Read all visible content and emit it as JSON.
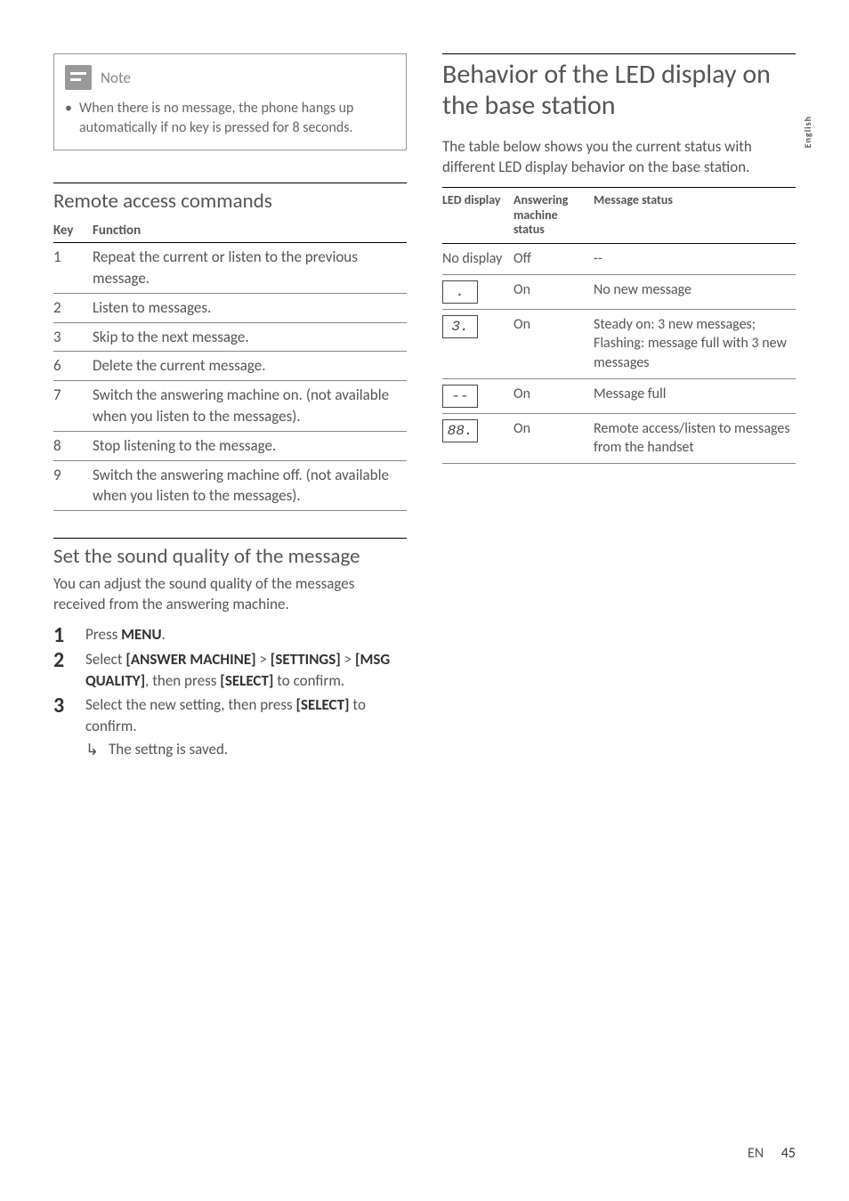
{
  "sideTab": "English",
  "note": {
    "title": "Note",
    "body": "When there is no message, the phone hangs up automatically if no key is pressed for 8 seconds."
  },
  "remote": {
    "heading": "Remote access commands",
    "col1": "Key",
    "col2": "Function",
    "rows": [
      {
        "key": "1",
        "fn": "Repeat the current or listen to the previous message."
      },
      {
        "key": "2",
        "fn": "Listen to messages."
      },
      {
        "key": "3",
        "fn": "Skip to the next message."
      },
      {
        "key": "6",
        "fn": "Delete the current message."
      },
      {
        "key": "7",
        "fn": "Switch the answering machine on. (not available when you listen to the messages)."
      },
      {
        "key": "8",
        "fn": "Stop listening to the message."
      },
      {
        "key": "9",
        "fn": "Switch the answering machine off. (not available when you listen to the messages)."
      }
    ]
  },
  "sound": {
    "heading": "Set the sound quality of the message",
    "intro": "You can adjust the sound quality of the messages received from the answering machine.",
    "step1_a": "Press ",
    "step1_b": "MENU",
    "step1_c": ".",
    "step2_a": "Select ",
    "step2_b": "[ANSWER MACHINE]",
    "step2_c": " > ",
    "step2_d": "[SETTINGS]",
    "step2_e": " > ",
    "step2_f": "[MSG QUALITY]",
    "step2_g": ", then press ",
    "step2_h": "[SELECT]",
    "step2_i": " to confirm.",
    "step3_a": "Select the new setting, then press ",
    "step3_b": "[SELECT]",
    "step3_c": " to confirm.",
    "result": "The settng is saved."
  },
  "led": {
    "heading": "Behavior of the LED display on the base station",
    "intro": "The table below shows you the current status with different LED display behavior on the base station.",
    "col1": "LED display",
    "col2": "Answering machine status",
    "col3": "Message status",
    "rows": [
      {
        "disp_text": "No display",
        "disp_seg": "",
        "ans": "Off",
        "msg": "--"
      },
      {
        "disp_text": "",
        "disp_seg": ".",
        "ans": "On",
        "msg": "No new message"
      },
      {
        "disp_text": "",
        "disp_seg": "3.",
        "ans": "On",
        "msg": "Steady on: 3 new messages;\nFlashing: message full with 3 new messages"
      },
      {
        "disp_text": "",
        "disp_seg": "--",
        "ans": "On",
        "msg": "Message full"
      },
      {
        "disp_text": "",
        "disp_seg": "88.",
        "ans": "On",
        "msg": "Remote access/listen to messages from the handset"
      }
    ]
  },
  "footer": {
    "lang": "EN",
    "page": "45"
  }
}
